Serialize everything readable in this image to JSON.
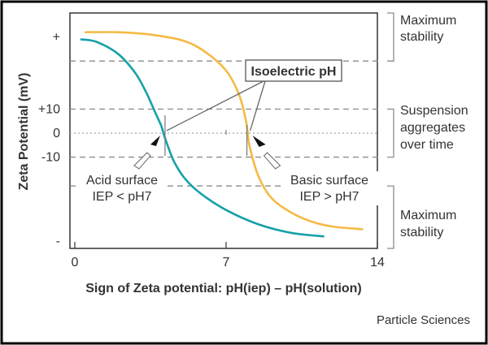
{
  "chart_data": {
    "type": "line",
    "title": "",
    "xlabel": "Sign of Zeta potential: pH(iep) – pH(solution)",
    "ylabel": "Zeta Potential (mV)",
    "x_ticks": [
      {
        "value": 0,
        "label": "0"
      },
      {
        "value": 7,
        "label": "7"
      },
      {
        "value": 14,
        "label": "14"
      }
    ],
    "y_ticks": [
      {
        "value": 40,
        "label": "+"
      },
      {
        "value": 10,
        "label": "+10"
      },
      {
        "value": 0,
        "label": "0"
      },
      {
        "value": -10,
        "label": "-10"
      },
      {
        "value": -45,
        "label": "-"
      }
    ],
    "xlim": [
      -0.3,
      14
    ],
    "ylim": [
      -48,
      50
    ],
    "reference_lines": [
      30,
      10,
      0,
      -10,
      -22
    ],
    "series": [
      {
        "color": "#16a1a8",
        "points": [
          [
            0.3,
            39
          ],
          [
            1,
            38
          ],
          [
            2,
            33
          ],
          [
            2.8,
            25
          ],
          [
            3.3,
            17
          ],
          [
            3.7,
            9
          ],
          [
            4.0,
            3
          ],
          [
            4.1,
            0
          ],
          [
            4.25,
            -4
          ],
          [
            4.6,
            -12
          ],
          [
            5.1,
            -19
          ],
          [
            5.8,
            -25
          ],
          [
            7,
            -32
          ],
          [
            8.5,
            -38
          ],
          [
            10,
            -41.5
          ],
          [
            11.5,
            -43
          ]
        ]
      },
      {
        "color": "#f5b944",
        "points": [
          [
            0.5,
            42
          ],
          [
            2,
            42
          ],
          [
            3.5,
            41
          ],
          [
            5,
            38.5
          ],
          [
            6,
            34
          ],
          [
            7,
            26
          ],
          [
            7.6,
            16
          ],
          [
            7.9,
            6
          ],
          [
            8.0,
            0
          ],
          [
            8.1,
            -6
          ],
          [
            8.5,
            -18
          ],
          [
            9.1,
            -27
          ],
          [
            10,
            -33
          ],
          [
            11,
            -37
          ],
          [
            12,
            -39
          ],
          [
            13.3,
            -40
          ]
        ]
      }
    ],
    "annotations": {
      "isoelectric": "Isoelectric pH",
      "acid_line1": "Acid surface",
      "acid_line2": "IEP < pH7",
      "basic_line1": "Basic surface",
      "basic_line2": "IEP > pH7",
      "acid_iep": 4.1,
      "basic_iep": 8.0
    },
    "bracket_labels": [
      {
        "lines": [
          "Maximum",
          "stability"
        ]
      },
      {
        "lines": [
          "Suspension",
          "aggregates",
          "over time"
        ]
      },
      {
        "lines": [
          "Maximum",
          "stability"
        ]
      }
    ]
  },
  "credit": "Particle Sciences",
  "colors": {
    "teal": "#16a1a8",
    "orange": "#f5b944",
    "axis": "#333333",
    "guide": "#9a9a9a"
  }
}
